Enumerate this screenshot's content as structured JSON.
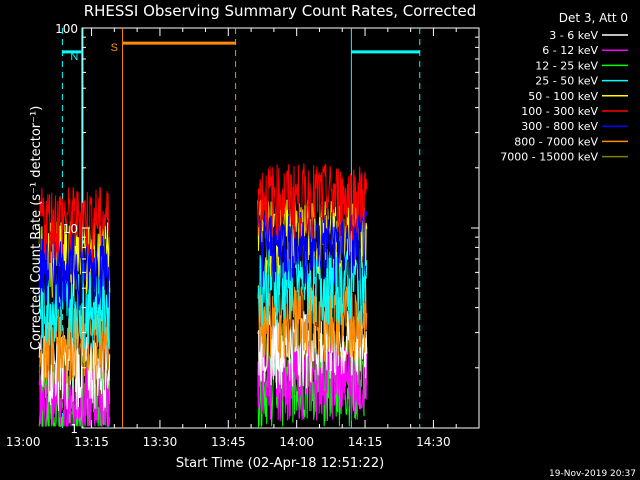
{
  "chart_data": {
    "type": "line",
    "title": "RHESSI Observing Summary Count Rates, Corrected",
    "xlabel": "Start Time (02-Apr-18 12:51:22)",
    "ylabel": "Corrected Count Rate (s⁻¹ detector⁻¹)",
    "ylog": true,
    "ylim": [
      1,
      100
    ],
    "yticks": [
      1,
      10,
      100
    ],
    "ytick_labels": [
      "1",
      "10",
      "100"
    ],
    "xlim_minutes": [
      12.9,
      100.0
    ],
    "xticks": [
      "13:00",
      "13:15",
      "13:30",
      "13:45",
      "14:00",
      "14:15",
      "14:30"
    ],
    "xtick_minutes": [
      0,
      15,
      30,
      45,
      60,
      75,
      90
    ],
    "legend_title": "Det 3, Att 0",
    "legend_position": "right",
    "series": [
      {
        "name": "3 - 6 keV",
        "color": "#ffffff",
        "approx_level": 2.2
      },
      {
        "name": "6 - 12 keV",
        "color": "#ff00ff",
        "approx_level": 1.5
      },
      {
        "name": "12 - 25 keV",
        "color": "#00ff00",
        "approx_level": 1.4
      },
      {
        "name": "25 - 50 keV",
        "color": "#00ffff",
        "approx_level": 4.5
      },
      {
        "name": "50 - 100 keV",
        "color": "#ffff00",
        "approx_level": 8.0
      },
      {
        "name": "100 - 300 keV",
        "color": "#ff0000",
        "approx_level": 12.0
      },
      {
        "name": "300 - 800 keV",
        "color": "#0000ff",
        "approx_level": 7.0
      },
      {
        "name": "800 - 7000 keV",
        "color": "#ff8c00",
        "approx_level": 3.0
      },
      {
        "name": "7000 - 15000 keV",
        "color": "#808000",
        "approx_level": 2.0
      }
    ],
    "data_intervals_minutes": [
      [
        3.5,
        19.0
      ],
      [
        51.5,
        75.5
      ]
    ],
    "flags": [
      {
        "label": "N",
        "color": "#00ffff",
        "segments": [
          [
            -10,
            8.6
          ],
          [
            72.0,
            87.0
          ]
        ]
      },
      {
        "label": "S",
        "color": "#ff8c00",
        "segments": [
          [
            21.8,
            46.6
          ]
        ]
      }
    ],
    "timestamp": "19-Nov-2019 20:37"
  }
}
